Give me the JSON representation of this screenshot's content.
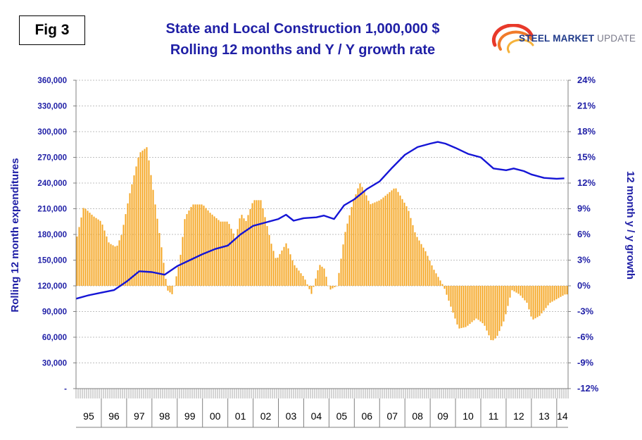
{
  "figure": {
    "badge": "Fig 3"
  },
  "logo": {
    "brand_bold": "STEEL MARKET",
    "brand_light": " UPDATE"
  },
  "chart_data": {
    "type": "bar+line",
    "title_line1": "State and Local Construction 1,000,000 $",
    "title_line2": "Rolling 12 months and Y / Y growth rate",
    "ylabel_left": "Rolling 12 month expenditures",
    "ylabel_right": "12 month y / y growth",
    "left_axis": {
      "ylim": [
        0,
        360000
      ],
      "ticks": [
        "-",
        "30,000",
        "60,000",
        "90,000",
        "120,000",
        "150,000",
        "180,000",
        "210,000",
        "240,000",
        "270,000",
        "300,000",
        "330,000",
        "360,000"
      ]
    },
    "right_axis": {
      "ylim": [
        -12,
        24
      ],
      "ticks": [
        "-12%",
        "-9%",
        "-6%",
        "-3%",
        "0%",
        "3%",
        "6%",
        "9%",
        "12%",
        "15%",
        "18%",
        "21%",
        "24%"
      ]
    },
    "years": [
      "95",
      "96",
      "97",
      "98",
      "99",
      "00",
      "01",
      "02",
      "03",
      "04",
      "05",
      "06",
      "07",
      "08",
      "09",
      "10",
      "11",
      "12",
      "13",
      "14"
    ],
    "grid": true,
    "colors": {
      "bars": "#f5a623",
      "line": "#1515d6",
      "axis_text": "#1f1fa6",
      "grid": "#bfbfbf"
    },
    "series": [
      {
        "name": "",
        "type": "bar",
        "axis": "right",
        "unit": "%",
        "annual_profile": [
          {
            "x": 1995.0,
            "y": 5.2
          },
          {
            "x": 1995.3,
            "y": 9.2
          },
          {
            "x": 1995.7,
            "y": 8.1
          },
          {
            "x": 1996.0,
            "y": 7.5
          },
          {
            "x": 1996.3,
            "y": 5.0
          },
          {
            "x": 1996.6,
            "y": 4.5
          },
          {
            "x": 1996.8,
            "y": 6.0
          },
          {
            "x": 1997.1,
            "y": 10.5
          },
          {
            "x": 1997.5,
            "y": 15.5
          },
          {
            "x": 1997.8,
            "y": 16.2
          },
          {
            "x": 1998.1,
            "y": 10.0
          },
          {
            "x": 1998.4,
            "y": 4.0
          },
          {
            "x": 1998.6,
            "y": -0.5
          },
          {
            "x": 1998.8,
            "y": -1.0
          },
          {
            "x": 1999.1,
            "y": 3.0
          },
          {
            "x": 1999.3,
            "y": 8.0
          },
          {
            "x": 1999.6,
            "y": 9.5
          },
          {
            "x": 2000.0,
            "y": 9.5
          },
          {
            "x": 2000.3,
            "y": 8.5
          },
          {
            "x": 2000.7,
            "y": 7.5
          },
          {
            "x": 2001.0,
            "y": 7.5
          },
          {
            "x": 2001.3,
            "y": 5.5
          },
          {
            "x": 2001.5,
            "y": 8.5
          },
          {
            "x": 2001.7,
            "y": 7.5
          },
          {
            "x": 2002.0,
            "y": 10.0
          },
          {
            "x": 2002.3,
            "y": 10.0
          },
          {
            "x": 2002.7,
            "y": 5.0
          },
          {
            "x": 2002.9,
            "y": 3.0
          },
          {
            "x": 2003.3,
            "y": 5.0
          },
          {
            "x": 2003.6,
            "y": 2.5
          },
          {
            "x": 2004.0,
            "y": 1.0
          },
          {
            "x": 2004.3,
            "y": -1.0
          },
          {
            "x": 2004.6,
            "y": 2.5
          },
          {
            "x": 2004.8,
            "y": 2.0
          },
          {
            "x": 2005.0,
            "y": -0.5
          },
          {
            "x": 2005.3,
            "y": 0.0
          },
          {
            "x": 2005.6,
            "y": 6.0
          },
          {
            "x": 2005.9,
            "y": 9.5
          },
          {
            "x": 2006.2,
            "y": 12.0
          },
          {
            "x": 2006.4,
            "y": 11.0
          },
          {
            "x": 2006.6,
            "y": 9.5
          },
          {
            "x": 2007.0,
            "y": 10.0
          },
          {
            "x": 2007.4,
            "y": 11.0
          },
          {
            "x": 2007.6,
            "y": 11.5
          },
          {
            "x": 2007.8,
            "y": 10.5
          },
          {
            "x": 2008.1,
            "y": 9.0
          },
          {
            "x": 2008.4,
            "y": 6.0
          },
          {
            "x": 2008.8,
            "y": 4.0
          },
          {
            "x": 2009.1,
            "y": 2.0
          },
          {
            "x": 2009.5,
            "y": 0.0
          },
          {
            "x": 2009.8,
            "y": -2.5
          },
          {
            "x": 2010.1,
            "y": -5.0
          },
          {
            "x": 2010.4,
            "y": -4.8
          },
          {
            "x": 2010.8,
            "y": -3.8
          },
          {
            "x": 2011.1,
            "y": -4.5
          },
          {
            "x": 2011.4,
            "y": -6.5
          },
          {
            "x": 2011.6,
            "y": -6.0
          },
          {
            "x": 2011.9,
            "y": -4.0
          },
          {
            "x": 2012.2,
            "y": -0.5
          },
          {
            "x": 2012.5,
            "y": -1.0
          },
          {
            "x": 2012.8,
            "y": -2.0
          },
          {
            "x": 2013.0,
            "y": -4.0
          },
          {
            "x": 2013.3,
            "y": -3.5
          },
          {
            "x": 2013.7,
            "y": -2.0
          },
          {
            "x": 2014.0,
            "y": -1.5
          },
          {
            "x": 2014.3,
            "y": -1.0
          }
        ]
      },
      {
        "name": "",
        "type": "line",
        "axis": "left",
        "unit": "$ millions",
        "points": [
          {
            "x": 1995.0,
            "y": 105000
          },
          {
            "x": 1995.5,
            "y": 109000
          },
          {
            "x": 1996.0,
            "y": 112000
          },
          {
            "x": 1996.5,
            "y": 115000
          },
          {
            "x": 1997.0,
            "y": 125000
          },
          {
            "x": 1997.5,
            "y": 137000
          },
          {
            "x": 1998.0,
            "y": 136000
          },
          {
            "x": 1998.5,
            "y": 133000
          },
          {
            "x": 1999.0,
            "y": 143000
          },
          {
            "x": 1999.5,
            "y": 150000
          },
          {
            "x": 2000.0,
            "y": 157000
          },
          {
            "x": 2000.5,
            "y": 163000
          },
          {
            "x": 2001.0,
            "y": 167000
          },
          {
            "x": 2001.5,
            "y": 180000
          },
          {
            "x": 2002.0,
            "y": 190000
          },
          {
            "x": 2002.5,
            "y": 194000
          },
          {
            "x": 2003.0,
            "y": 198000
          },
          {
            "x": 2003.3,
            "y": 203000
          },
          {
            "x": 2003.6,
            "y": 196000
          },
          {
            "x": 2004.0,
            "y": 199000
          },
          {
            "x": 2004.5,
            "y": 200000
          },
          {
            "x": 2004.8,
            "y": 202000
          },
          {
            "x": 2005.2,
            "y": 198000
          },
          {
            "x": 2005.6,
            "y": 214000
          },
          {
            "x": 2006.0,
            "y": 221000
          },
          {
            "x": 2006.5,
            "y": 233000
          },
          {
            "x": 2007.0,
            "y": 242000
          },
          {
            "x": 2007.5,
            "y": 258000
          },
          {
            "x": 2008.0,
            "y": 273000
          },
          {
            "x": 2008.5,
            "y": 282000
          },
          {
            "x": 2009.0,
            "y": 286000
          },
          {
            "x": 2009.3,
            "y": 288000
          },
          {
            "x": 2009.6,
            "y": 286000
          },
          {
            "x": 2010.0,
            "y": 281000
          },
          {
            "x": 2010.5,
            "y": 274000
          },
          {
            "x": 2011.0,
            "y": 270000
          },
          {
            "x": 2011.5,
            "y": 257000
          },
          {
            "x": 2012.0,
            "y": 255000
          },
          {
            "x": 2012.3,
            "y": 257000
          },
          {
            "x": 2012.7,
            "y": 254000
          },
          {
            "x": 2013.0,
            "y": 250000
          },
          {
            "x": 2013.5,
            "y": 246000
          },
          {
            "x": 2014.0,
            "y": 245000
          },
          {
            "x": 2014.3,
            "y": 245500
          }
        ]
      }
    ]
  }
}
